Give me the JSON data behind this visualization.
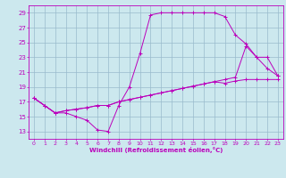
{
  "xlabel": "Windchill (Refroidissement éolien,°C)",
  "bg_color": "#cce8ee",
  "line_color": "#bb00bb",
  "grid_color": "#99bbcc",
  "ylim": [
    12,
    30
  ],
  "xlim": [
    -0.5,
    23.5
  ],
  "yticks": [
    13,
    15,
    17,
    19,
    21,
    23,
    25,
    27,
    29
  ],
  "xticks": [
    0,
    1,
    2,
    3,
    4,
    5,
    6,
    7,
    8,
    9,
    10,
    11,
    12,
    13,
    14,
    15,
    16,
    17,
    18,
    19,
    20,
    21,
    22,
    23
  ],
  "line1_x": [
    0,
    1,
    2,
    3,
    4,
    5,
    6,
    7,
    8,
    9,
    10,
    11,
    12,
    13,
    14,
    15,
    16,
    17,
    18,
    19,
    20,
    21,
    22,
    23
  ],
  "line1_y": [
    17.5,
    16.5,
    15.5,
    15.5,
    15.0,
    14.5,
    13.2,
    13.0,
    16.5,
    19.0,
    23.5,
    28.7,
    29.0,
    29.0,
    29.0,
    29.0,
    29.0,
    29.0,
    28.5,
    26.0,
    24.8,
    23.0,
    21.5,
    20.5
  ],
  "line2_x": [
    0,
    1,
    2,
    3,
    4,
    5,
    6,
    7,
    8,
    9,
    10,
    11,
    12,
    13,
    14,
    15,
    16,
    17,
    18,
    19,
    20,
    21,
    22,
    23
  ],
  "line2_y": [
    17.5,
    16.5,
    15.5,
    15.8,
    16.0,
    16.2,
    16.5,
    16.5,
    17.0,
    17.3,
    17.6,
    17.9,
    18.2,
    18.5,
    18.8,
    19.1,
    19.4,
    19.7,
    20.0,
    20.3,
    24.5,
    23.0,
    23.0,
    20.5
  ],
  "line3_x": [
    0,
    1,
    2,
    3,
    4,
    5,
    6,
    7,
    8,
    9,
    10,
    11,
    12,
    13,
    14,
    15,
    16,
    17,
    18,
    19,
    20,
    21,
    22,
    23
  ],
  "line3_y": [
    17.5,
    16.5,
    15.5,
    15.8,
    16.0,
    16.2,
    16.5,
    16.5,
    17.0,
    17.3,
    17.6,
    17.9,
    18.2,
    18.5,
    18.8,
    19.1,
    19.4,
    19.7,
    19.5,
    19.8,
    20.0,
    20.0,
    20.0,
    20.0
  ]
}
